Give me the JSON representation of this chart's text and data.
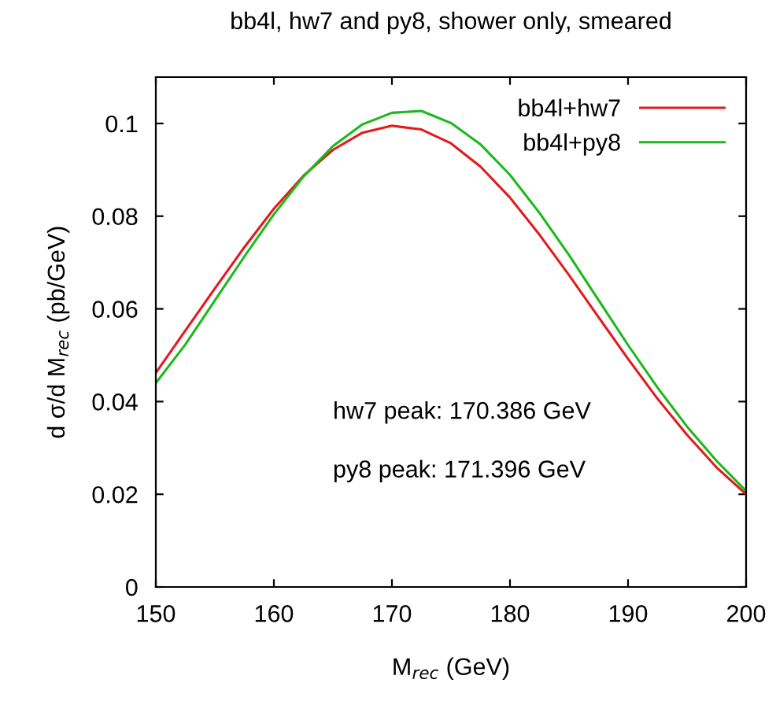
{
  "chart_data": {
    "type": "line",
    "title": "bb4l, hw7 and py8, shower only, smeared",
    "xlabel": "M$_{rec}$ (GeV)",
    "ylabel": "d σ/d M$_{rec}$ (pb/GeV)",
    "x": [
      150,
      152.5,
      155,
      157.5,
      160,
      162.5,
      165,
      167.5,
      170,
      172.5,
      175,
      177.5,
      180,
      182.5,
      185,
      187.5,
      190,
      192.5,
      195,
      197.5,
      200
    ],
    "series": [
      {
        "name": "bb4l+hw7",
        "color": "#e41a1c",
        "values": [
          0.0462,
          0.0553,
          0.0644,
          0.0733,
          0.0816,
          0.0887,
          0.0943,
          0.098,
          0.0995,
          0.0987,
          0.0957,
          0.0907,
          0.084,
          0.076,
          0.0673,
          0.0582,
          0.0492,
          0.0406,
          0.0328,
          0.0258,
          0.02
        ]
      },
      {
        "name": "bb4l+py8",
        "color": "#1aba1a",
        "values": [
          0.044,
          0.0523,
          0.0618,
          0.0713,
          0.0804,
          0.0885,
          0.0951,
          0.0998,
          0.1023,
          0.1027,
          0.1001,
          0.0955,
          0.0889,
          0.0807,
          0.0716,
          0.0619,
          0.0522,
          0.043,
          0.0346,
          0.0272,
          0.0207
        ]
      }
    ],
    "xlim": [
      150,
      200
    ],
    "ylim": [
      0,
      0.11
    ],
    "xticks": [
      150,
      160,
      170,
      180,
      190,
      200
    ],
    "yticks": [
      0,
      0.02,
      0.04,
      0.06,
      0.08,
      0.1
    ],
    "annotations": [
      "hw7 peak: 170.386 GeV",
      "py8 peak: 171.396 GeV"
    ],
    "legend": "top right",
    "grid": false,
    "marker": "none",
    "line_style": "solid"
  }
}
